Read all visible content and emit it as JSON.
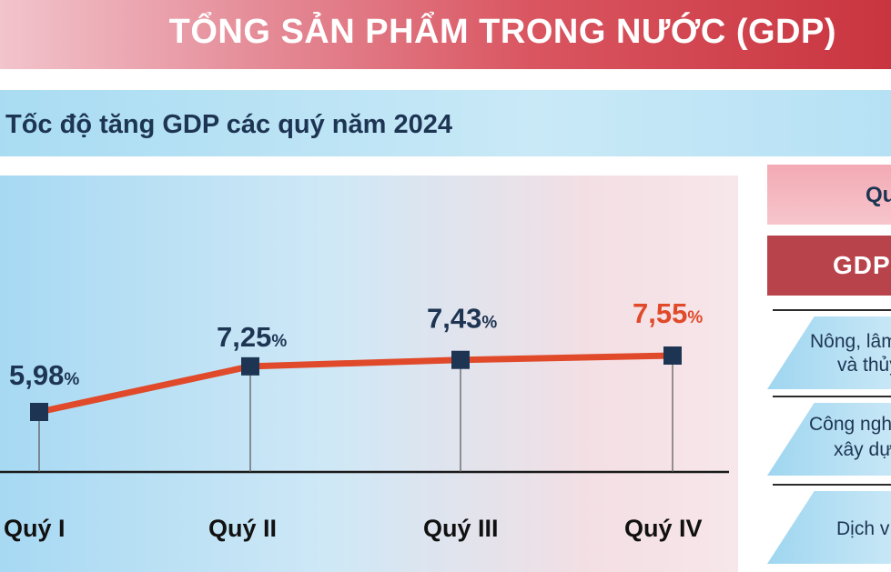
{
  "header": {
    "title": "TỔNG SẢN PHẨM TRONG NƯỚC (GDP)"
  },
  "section": {
    "title": "Tốc độ tăng GDP các quý năm 2024"
  },
  "chart_data": {
    "type": "line",
    "title": "Tốc độ tăng GDP các quý năm 2024",
    "categories": [
      "Quý I",
      "Quý II",
      "Quý III",
      "Quý IV"
    ],
    "series": [
      {
        "values": [
          5.98,
          7.25,
          7.43,
          7.55
        ],
        "color": "#e04a2a"
      }
    ],
    "value_labels": [
      "5,98",
      "7,25",
      "7,43",
      "7,55"
    ],
    "unit": "%",
    "label_colors": [
      "#1d3553",
      "#1d3553",
      "#1d3553",
      "#e04a2a"
    ],
    "marker_color": "#1d3553",
    "grid": false,
    "ylim": [
      3,
      10
    ]
  },
  "sidebar": {
    "quarter_label": "Quý I",
    "gdp_label": "GDP",
    "sectors": [
      {
        "line1": "Nông, lâm",
        "line2": "và thủy"
      },
      {
        "line1": "Công ngh",
        "line2": "xây dự"
      },
      {
        "line1": "Dịch v",
        "line2": ""
      }
    ]
  }
}
